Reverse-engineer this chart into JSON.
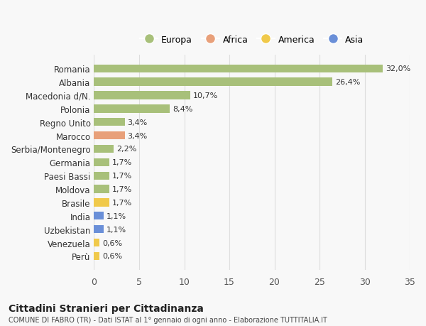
{
  "countries": [
    "Perù",
    "Venezuela",
    "Uzbekistan",
    "India",
    "Brasile",
    "Moldova",
    "Paesi Bassi",
    "Germania",
    "Serbia/Montenegro",
    "Marocco",
    "Regno Unito",
    "Polonia",
    "Macedonia d/N.",
    "Albania",
    "Romania"
  ],
  "values": [
    0.6,
    0.6,
    1.1,
    1.1,
    1.7,
    1.7,
    1.7,
    1.7,
    2.2,
    3.4,
    3.4,
    8.4,
    10.7,
    26.4,
    32.0
  ],
  "labels": [
    "0,6%",
    "0,6%",
    "1,1%",
    "1,1%",
    "1,7%",
    "1,7%",
    "1,7%",
    "1,7%",
    "2,2%",
    "3,4%",
    "3,4%",
    "8,4%",
    "10,7%",
    "26,4%",
    "32,0%"
  ],
  "colors": [
    "#f0c94a",
    "#f0c94a",
    "#6a8fd8",
    "#6a8fd8",
    "#f0c94a",
    "#a8c07a",
    "#a8c07a",
    "#a8c07a",
    "#a8c07a",
    "#e8a07a",
    "#a8c07a",
    "#a8c07a",
    "#a8c07a",
    "#a8c07a",
    "#a8c07a"
  ],
  "legend": [
    {
      "label": "Europa",
      "color": "#a8c07a"
    },
    {
      "label": "Africa",
      "color": "#e8a07a"
    },
    {
      "label": "America",
      "color": "#f0c94a"
    },
    {
      "label": "Asia",
      "color": "#6a8fd8"
    }
  ],
  "xlim": [
    0,
    35
  ],
  "xticks": [
    0,
    5,
    10,
    15,
    20,
    25,
    30,
    35
  ],
  "title": "Cittadini Stranieri per Cittadinanza",
  "subtitle": "COMUNE DI FABRO (TR) - Dati ISTAT al 1° gennaio di ogni anno - Elaborazione TUTTITALIA.IT",
  "bg_color": "#f8f8f8",
  "grid_color": "#dddddd",
  "bar_height": 0.6
}
